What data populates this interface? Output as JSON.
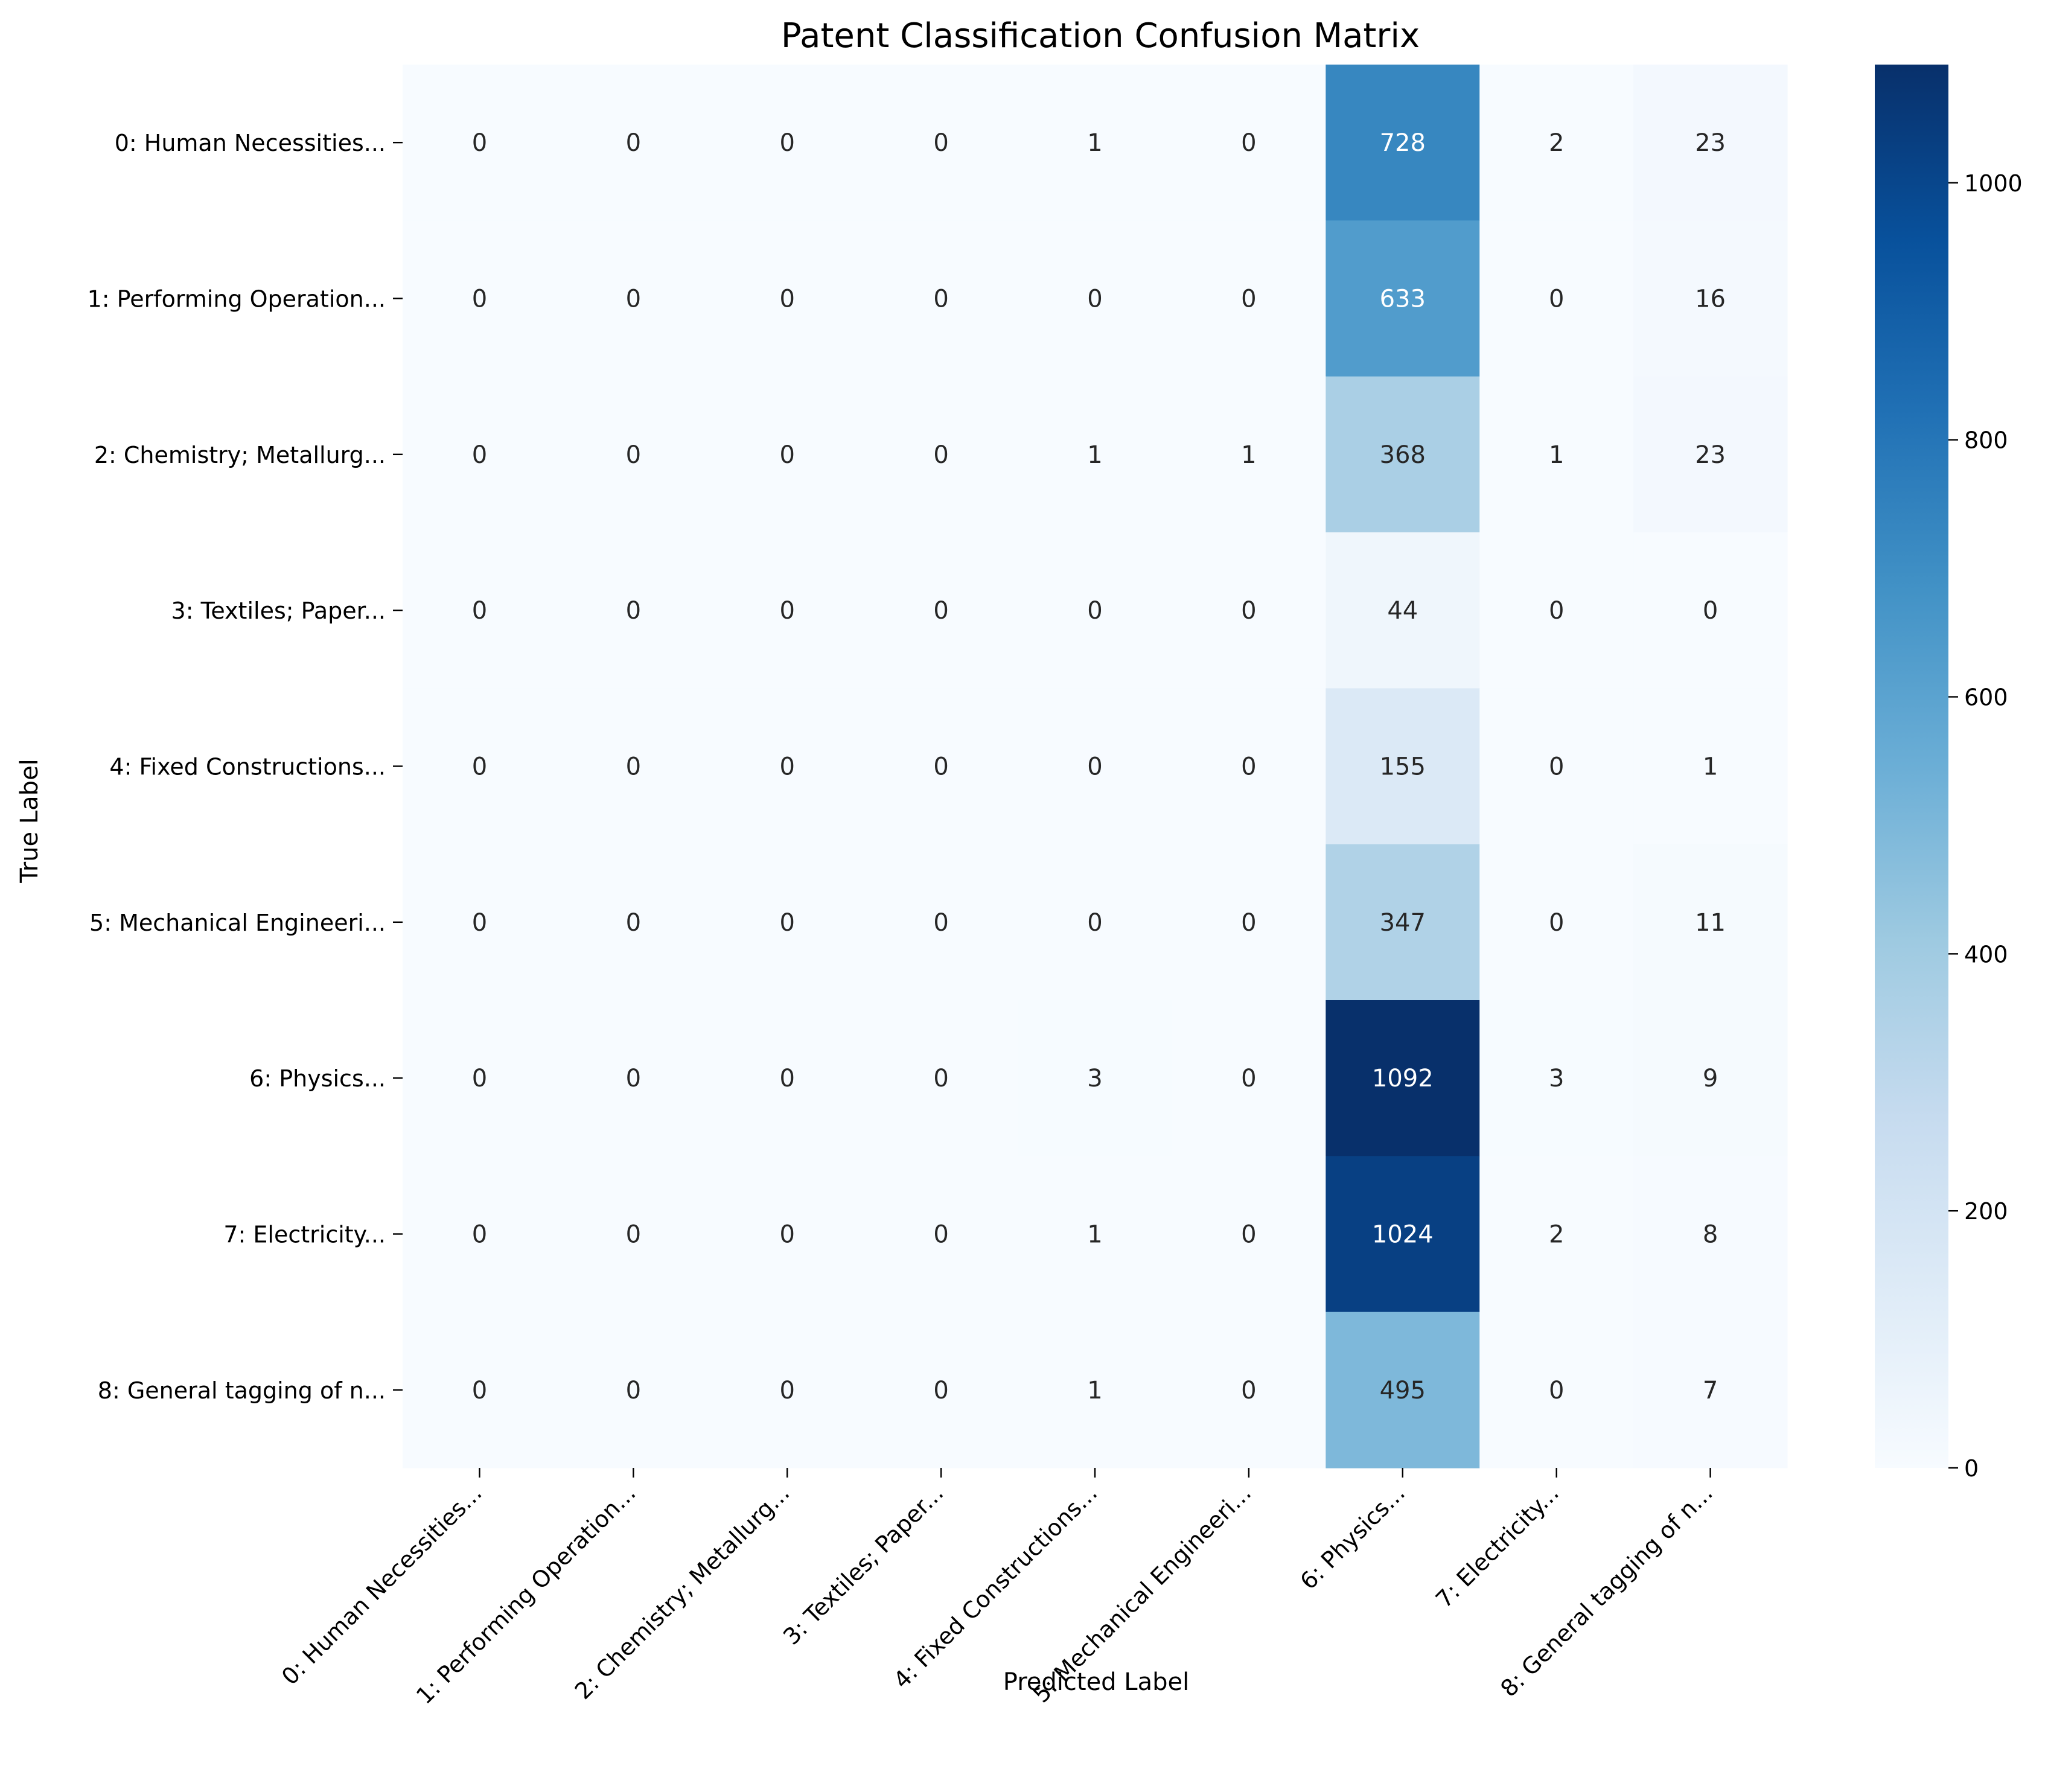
{
  "chart_data": {
    "type": "heatmap",
    "title": "Patent Classification Confusion Matrix",
    "xlabel": "Predicted Label",
    "ylabel": "True Label",
    "x_categories": [
      "0: Human Necessities...",
      "1: Performing Operation...",
      "2: Chemistry; Metallurg...",
      "3: Textiles; Paper...",
      "4: Fixed Constructions...",
      "5: Mechanical Engineeri...",
      "6: Physics...",
      "7: Electricity...",
      "8: General tagging of n..."
    ],
    "y_categories": [
      "0: Human Necessities...",
      "1: Performing Operation...",
      "2: Chemistry; Metallurg...",
      "3: Textiles; Paper...",
      "4: Fixed Constructions...",
      "5: Mechanical Engineeri...",
      "6: Physics...",
      "7: Electricity...",
      "8: General tagging of n..."
    ],
    "matrix": [
      [
        0,
        0,
        0,
        0,
        1,
        0,
        728,
        2,
        23
      ],
      [
        0,
        0,
        0,
        0,
        0,
        0,
        633,
        0,
        16
      ],
      [
        0,
        0,
        0,
        0,
        1,
        1,
        368,
        1,
        23
      ],
      [
        0,
        0,
        0,
        0,
        0,
        0,
        44,
        0,
        0
      ],
      [
        0,
        0,
        0,
        0,
        0,
        0,
        155,
        0,
        1
      ],
      [
        0,
        0,
        0,
        0,
        0,
        0,
        347,
        0,
        11
      ],
      [
        0,
        0,
        0,
        0,
        3,
        0,
        1092,
        3,
        9
      ],
      [
        0,
        0,
        0,
        0,
        1,
        0,
        1024,
        2,
        8
      ],
      [
        0,
        0,
        0,
        0,
        1,
        0,
        495,
        0,
        7
      ]
    ],
    "colormap": "Blues",
    "vmin": 0,
    "vmax": 1092,
    "colorbar_ticks": [
      0,
      200,
      400,
      600,
      800,
      1000
    ],
    "colors": [
      "#f7fbff",
      "#deebf7",
      "#c6dbef",
      "#9ecae1",
      "#6baed6",
      "#4292c6",
      "#2171b5",
      "#08519c",
      "#08306b"
    ]
  }
}
